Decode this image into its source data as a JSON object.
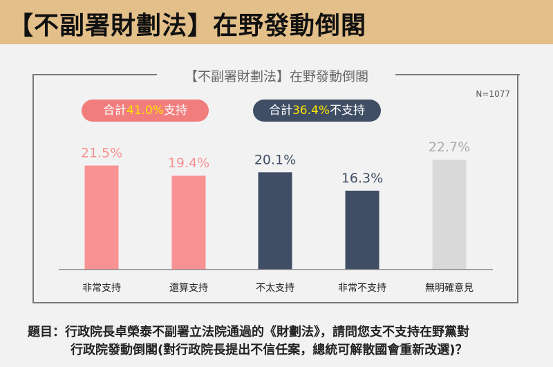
{
  "header": {
    "title": "【不副署財劃法】在野發動倒閣"
  },
  "chart_data": {
    "type": "bar",
    "title": "【不副署財劃法】在野發動倒閣",
    "note": "N=1077",
    "categories": [
      "非常支持",
      "還算支持",
      "不太支持",
      "非常不支持",
      "無明確意見"
    ],
    "values": [
      21.5,
      19.4,
      20.1,
      16.3,
      22.7
    ],
    "labels": [
      "21.5%",
      "19.4%",
      "20.1%",
      "16.3%",
      "22.7%"
    ],
    "colors": [
      "#f99292",
      "#f99292",
      "#3f4e65",
      "#3f4e65",
      "#d9d9d9"
    ],
    "label_colors": [
      "#f99292",
      "#f99292",
      "#3f4e65",
      "#3f4e65",
      "#aaaaaa"
    ],
    "ylim": [
      0,
      25
    ],
    "grid": false,
    "summary": [
      {
        "prefix": "合計",
        "value": "41.0%",
        "suffix": "支持",
        "color": "#f27d7d"
      },
      {
        "prefix": "合計",
        "value": "36.4%",
        "suffix": "不支持",
        "color": "#3f4e65"
      }
    ]
  },
  "question": {
    "line1": "題目：行政院長卓榮泰不副署立法院通過的《財劃法》，請問您支不支持在野黨對",
    "line2": "行政院發動倒閣(對行政院長提出不信任案，總統可解散國會重新改選)？"
  }
}
